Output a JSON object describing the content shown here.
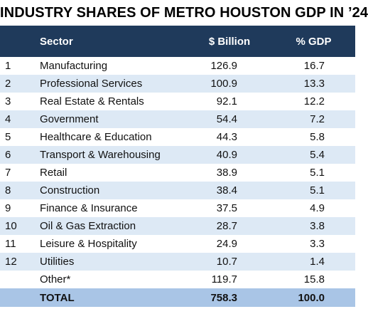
{
  "title": "INDUSTRY SHARES OF METRO HOUSTON GDP IN ’24",
  "headers": {
    "rank": "",
    "sector": "Sector",
    "billion": "$ Billion",
    "pct": "% GDP"
  },
  "rows": [
    {
      "rank": "1",
      "sector": "Manufacturing",
      "billion": "126.9",
      "pct": "16.7"
    },
    {
      "rank": "2",
      "sector": "Professional Services",
      "billion": "100.9",
      "pct": "13.3"
    },
    {
      "rank": "3",
      "sector": "Real Estate & Rentals",
      "billion": "92.1",
      "pct": "12.2"
    },
    {
      "rank": "4",
      "sector": "Government",
      "billion": "54.4",
      "pct": "7.2"
    },
    {
      "rank": "5",
      "sector": "Healthcare & Education",
      "billion": "44.3",
      "pct": "5.8"
    },
    {
      "rank": "6",
      "sector": "Transport & Warehousing",
      "billion": "40.9",
      "pct": "5.4"
    },
    {
      "rank": "7",
      "sector": "Retail",
      "billion": "38.9",
      "pct": "5.1"
    },
    {
      "rank": "8",
      "sector": "Construction",
      "billion": "38.4",
      "pct": "5.1"
    },
    {
      "rank": "9",
      "sector": "Finance & Insurance",
      "billion": "37.5",
      "pct": "4.9"
    },
    {
      "rank": "10",
      "sector": "Oil & Gas Extraction",
      "billion": "28.7",
      "pct": "3.8"
    },
    {
      "rank": "11",
      "sector": "Leisure & Hospitality",
      "billion": "24.9",
      "pct": "3.3"
    },
    {
      "rank": "12",
      "sector": "Utilities",
      "billion": "10.7",
      "pct": "1.4"
    },
    {
      "rank": "",
      "sector": "Other*",
      "billion": "119.7",
      "pct": "15.8"
    }
  ],
  "total": {
    "rank": "",
    "sector": "TOTAL",
    "billion": "758.3",
    "pct": "100.0"
  },
  "colors": {
    "header_bg": "#1f3a5b",
    "band_bg": "#dde9f5",
    "total_bg": "#a9c5e6"
  },
  "chart_data": {
    "type": "table",
    "title": "INDUSTRY SHARES OF METRO HOUSTON GDP IN ’24",
    "columns": [
      "",
      "Sector",
      "$ Billion",
      "% GDP"
    ],
    "rows": [
      [
        "1",
        "Manufacturing",
        126.9,
        16.7
      ],
      [
        "2",
        "Professional Services",
        100.9,
        13.3
      ],
      [
        "3",
        "Real Estate & Rentals",
        92.1,
        12.2
      ],
      [
        "4",
        "Government",
        54.4,
        7.2
      ],
      [
        "5",
        "Healthcare & Education",
        44.3,
        5.8
      ],
      [
        "6",
        "Transport & Warehousing",
        40.9,
        5.4
      ],
      [
        "7",
        "Retail",
        38.9,
        5.1
      ],
      [
        "8",
        "Construction",
        38.4,
        5.1
      ],
      [
        "9",
        "Finance & Insurance",
        37.5,
        4.9
      ],
      [
        "10",
        "Oil & Gas Extraction",
        28.7,
        3.8
      ],
      [
        "11",
        "Leisure & Hospitality",
        24.9,
        3.3
      ],
      [
        "12",
        "Utilities",
        10.7,
        1.4
      ],
      [
        "",
        "Other*",
        119.7,
        15.8
      ]
    ],
    "total": [
      "",
      "TOTAL",
      758.3,
      100.0
    ]
  }
}
